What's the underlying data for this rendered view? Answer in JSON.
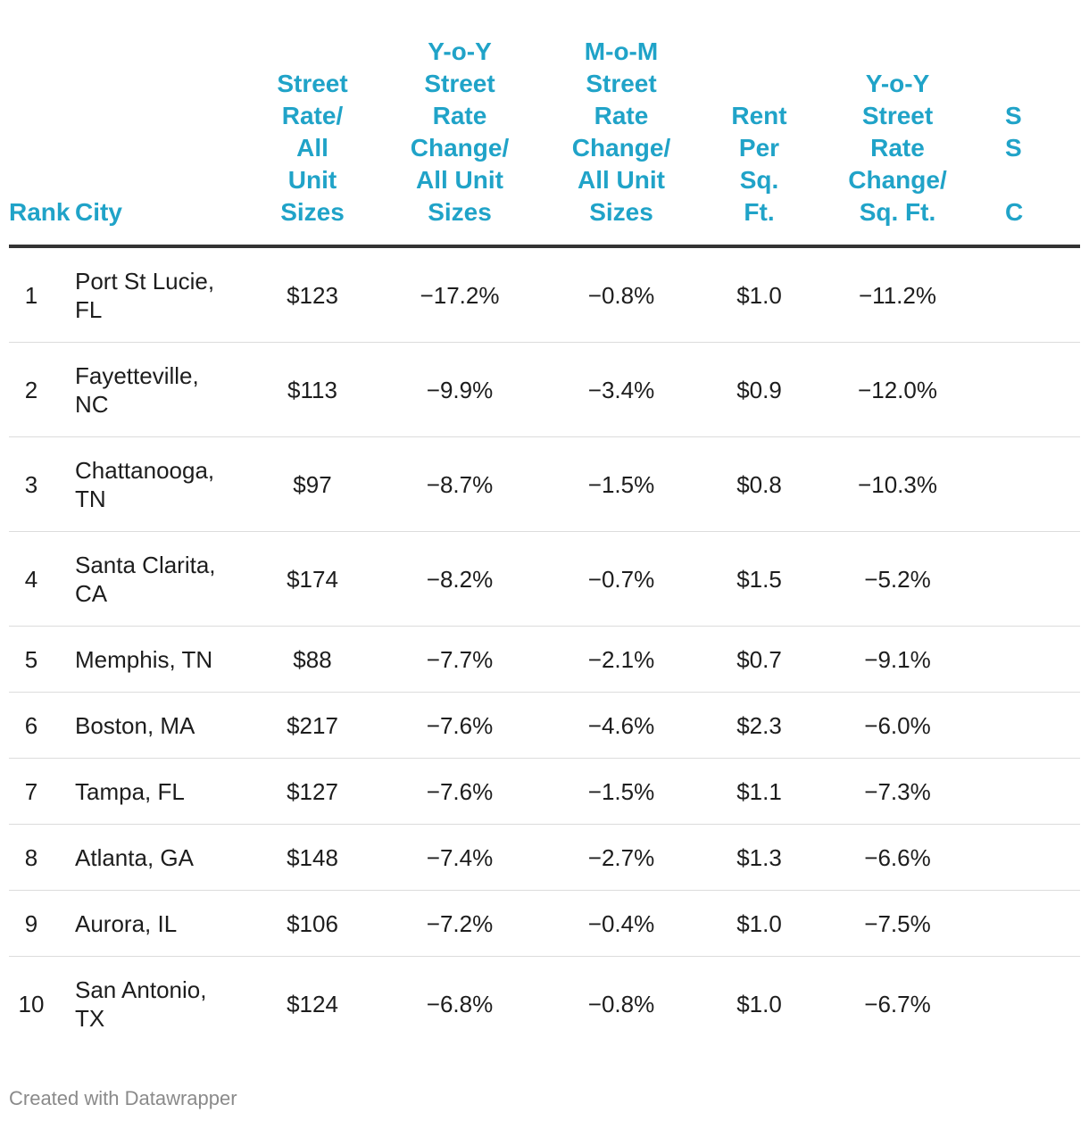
{
  "chart_data": {
    "type": "table",
    "columns": [
      "Rank",
      "City",
      "Street Rate/ All Unit Sizes",
      "Y-o-Y Street Rate Change/ All Unit Sizes",
      "M-o-M Street Rate Change/ All Unit Sizes",
      "Rent Per Sq. Ft.",
      "Y-o-Y Street Rate Change/ Sq. Ft."
    ],
    "header_lines": [
      [
        "Rank"
      ],
      [
        "City"
      ],
      [
        "Street",
        "Rate/",
        "All",
        "Unit",
        "Sizes"
      ],
      [
        "Y-o-Y",
        "Street",
        "Rate",
        "Change/",
        "All Unit",
        "Sizes"
      ],
      [
        "M-o-M",
        "Street",
        "Rate",
        "Change/",
        "All Unit",
        "Sizes"
      ],
      [
        "Rent",
        "Per",
        "Sq.",
        "Ft."
      ],
      [
        "Y-o-Y",
        "Street",
        "Rate",
        "Change/",
        "Sq. Ft."
      ],
      [
        "S",
        "S",
        "",
        "C"
      ]
    ],
    "rows": [
      {
        "rank": "1",
        "city": "Port St Lucie, FL",
        "street_rate": "$123",
        "yoy_change": "−17.2%",
        "mom_change": "−0.8%",
        "rent_sqft": "$1.0",
        "yoy_sqft": "−11.2%"
      },
      {
        "rank": "2",
        "city": "Fayetteville, NC",
        "street_rate": "$113",
        "yoy_change": "−9.9%",
        "mom_change": "−3.4%",
        "rent_sqft": "$0.9",
        "yoy_sqft": "−12.0%"
      },
      {
        "rank": "3",
        "city": "Chattanooga, TN",
        "street_rate": "$97",
        "yoy_change": "−8.7%",
        "mom_change": "−1.5%",
        "rent_sqft": "$0.8",
        "yoy_sqft": "−10.3%"
      },
      {
        "rank": "4",
        "city": "Santa Clarita, CA",
        "street_rate": "$174",
        "yoy_change": "−8.2%",
        "mom_change": "−0.7%",
        "rent_sqft": "$1.5",
        "yoy_sqft": "−5.2%"
      },
      {
        "rank": "5",
        "city": "Memphis, TN",
        "street_rate": "$88",
        "yoy_change": "−7.7%",
        "mom_change": "−2.1%",
        "rent_sqft": "$0.7",
        "yoy_sqft": "−9.1%"
      },
      {
        "rank": "6",
        "city": "Boston, MA",
        "street_rate": "$217",
        "yoy_change": "−7.6%",
        "mom_change": "−4.6%",
        "rent_sqft": "$2.3",
        "yoy_sqft": "−6.0%"
      },
      {
        "rank": "7",
        "city": "Tampa, FL",
        "street_rate": "$127",
        "yoy_change": "−7.6%",
        "mom_change": "−1.5%",
        "rent_sqft": "$1.1",
        "yoy_sqft": "−7.3%"
      },
      {
        "rank": "8",
        "city": "Atlanta, GA",
        "street_rate": "$148",
        "yoy_change": "−7.4%",
        "mom_change": "−2.7%",
        "rent_sqft": "$1.3",
        "yoy_sqft": "−6.6%"
      },
      {
        "rank": "9",
        "city": "Aurora, IL",
        "street_rate": "$106",
        "yoy_change": "−7.2%",
        "mom_change": "−0.4%",
        "rent_sqft": "$1.0",
        "yoy_sqft": "−7.5%"
      },
      {
        "rank": "10",
        "city": "San Antonio, TX",
        "street_rate": "$124",
        "yoy_change": "−6.8%",
        "mom_change": "−0.8%",
        "rent_sqft": "$1.0",
        "yoy_sqft": "−6.7%"
      }
    ],
    "colors": {
      "header": "#20a3c8",
      "text": "#1d1d1d",
      "header_rule": "#333333",
      "row_rule": "#dcdcdc",
      "footer": "#8a8a8a"
    }
  },
  "footer": {
    "credit": "Created with Datawrapper"
  }
}
